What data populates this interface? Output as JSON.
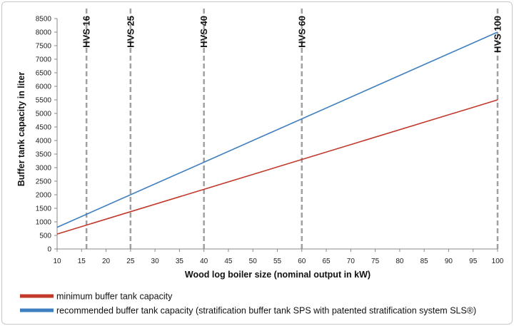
{
  "chart_data": {
    "type": "line",
    "xlabel": "Wood log boiler size (nominal output in kW)",
    "ylabel": "Buffer tank capacity in liter",
    "xlim": [
      10,
      100
    ],
    "ylim": [
      0,
      8500
    ],
    "x_ticks": [
      10,
      15,
      20,
      25,
      30,
      35,
      40,
      45,
      50,
      55,
      60,
      65,
      70,
      75,
      80,
      85,
      90,
      95,
      100
    ],
    "y_ticks": [
      0,
      500,
      1000,
      1500,
      2000,
      2500,
      3000,
      3500,
      4000,
      4500,
      5000,
      5500,
      6000,
      6500,
      7000,
      7500,
      8000,
      8500
    ],
    "grid": "vertical-dashed-markers",
    "series": [
      {
        "name": "minimum buffer tank capacity",
        "color": "#c0392b",
        "x": [
          10,
          100
        ],
        "y": [
          550,
          5500
        ]
      },
      {
        "name": "recommended buffer tank capacity (stratification buffer tank SPS with patented stratification system SLS®)",
        "color": "#3f7fbf",
        "x": [
          10,
          100
        ],
        "y": [
          800,
          8000
        ]
      }
    ],
    "markers": [
      {
        "label": "HVS 16",
        "x": 16
      },
      {
        "label": "HVS 25",
        "x": 25
      },
      {
        "label": "HVS 40",
        "x": 40
      },
      {
        "label": "HVS 60",
        "x": 60
      },
      {
        "label": "HVS 100",
        "x": 100
      }
    ],
    "legend_placement": "bottom"
  }
}
